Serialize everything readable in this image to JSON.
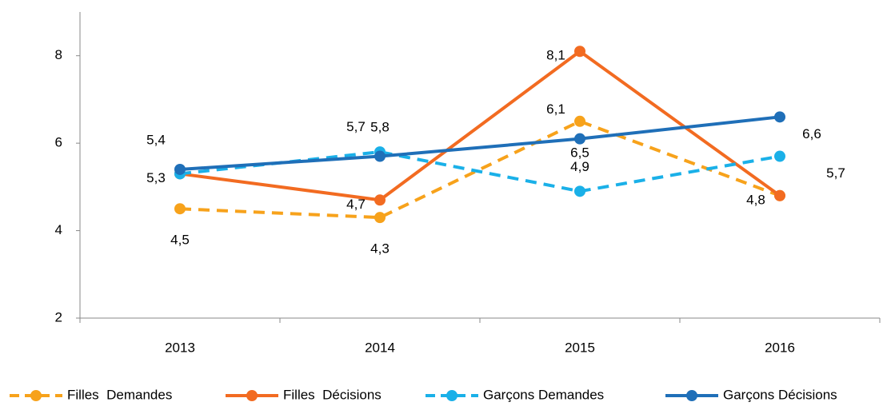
{
  "chart_data": {
    "type": "line",
    "categories": [
      "2013",
      "2014",
      "2015",
      "2016"
    ],
    "ylim": [
      2,
      9
    ],
    "yticks": [
      2,
      4,
      6,
      8
    ],
    "series": [
      {
        "name": "Filles  Demandes",
        "color": "#f7a21b",
        "dashed": true,
        "values": [
          4.5,
          4.3,
          6.5,
          4.8
        ],
        "value_labels": [
          "4,5",
          "4,3",
          "6,5",
          null
        ]
      },
      {
        "name": "Filles  Décisions",
        "color": "#f26b21",
        "dashed": false,
        "values": [
          5.3,
          4.7,
          8.1,
          4.8
        ],
        "value_labels": [
          "5,3",
          "4,7",
          "8,1",
          "4,8"
        ]
      },
      {
        "name": "Garçons Demandes",
        "color": "#1ab0e8",
        "dashed": true,
        "values": [
          5.3,
          5.8,
          4.9,
          5.7
        ],
        "value_labels": [
          null,
          "5,8",
          "4,9",
          "5,7"
        ]
      },
      {
        "name": "Garçons Décisions",
        "color": "#1f6fb8",
        "dashed": false,
        "values": [
          5.4,
          5.7,
          6.1,
          6.6
        ],
        "value_labels": [
          "5,4",
          "5,7",
          "6,1",
          "6,6"
        ]
      }
    ]
  }
}
